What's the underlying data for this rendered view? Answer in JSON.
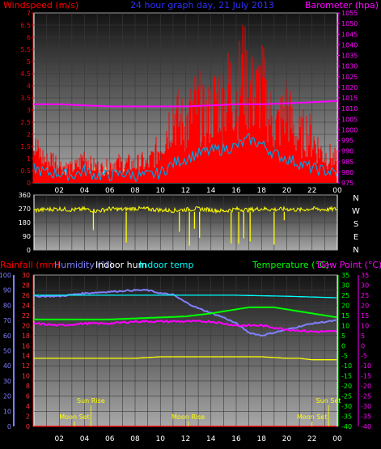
{
  "chart_data": [
    {
      "type": "line",
      "title": "24 hour graph day, 21 July 2013",
      "left_axis": {
        "label": "Windspeed (m/s)",
        "min": 0,
        "max": 7,
        "step": 0.5
      },
      "right_axis": {
        "label": "Barometer (hpa)",
        "min": 975,
        "max": 1055,
        "step": 5
      },
      "x_ticks": [
        "02",
        "04",
        "06",
        "08",
        "10",
        "12",
        "14",
        "16",
        "18",
        "20",
        "22",
        "00"
      ],
      "series": [
        {
          "key": "gust",
          "color": "#ff0000",
          "hours": [
            0,
            0.5,
            1,
            1.5,
            2,
            2.5,
            3,
            3.5,
            4,
            4.5,
            5,
            5.5,
            6,
            6.5,
            7,
            7.5,
            8,
            8.5,
            9,
            9.5,
            10,
            10.5,
            11,
            11.5,
            12,
            12.5,
            13,
            13.5,
            14,
            14.5,
            15,
            15.5,
            16,
            16.5,
            17,
            17.5,
            18,
            18.5,
            19,
            19.5,
            20,
            20.5,
            21,
            21.5,
            22,
            22.5,
            23,
            23.5,
            24
          ],
          "values": [
            2.0,
            1.6,
            1.2,
            1.4,
            1.0,
            0.9,
            0.8,
            1.0,
            1.6,
            1.0,
            0.9,
            0.8,
            1.0,
            1.2,
            1.0,
            1.1,
            1.0,
            1.2,
            1.0,
            1.6,
            2.0,
            3.0,
            4.0,
            3.5,
            3.2,
            4.0,
            4.5,
            3.5,
            4.0,
            5.0,
            4.5,
            5.5,
            4.5,
            6.5,
            5.2,
            4.8,
            5.5,
            4.5,
            3.0,
            3.5,
            4.5,
            3.0,
            2.5,
            3.0,
            2.5,
            2.0,
            1.5,
            1.5,
            1.2
          ]
        },
        {
          "key": "wind",
          "color": "#00a0e0",
          "hours": [
            0,
            1,
            2,
            3,
            4,
            5,
            6,
            7,
            8,
            9,
            10,
            11,
            12,
            13,
            14,
            15,
            16,
            17,
            18,
            19,
            20,
            21,
            22,
            23,
            24
          ],
          "values": [
            0.6,
            0.4,
            0.4,
            0.3,
            0.5,
            0.3,
            0.3,
            0.4,
            0.3,
            0.3,
            0.4,
            0.8,
            1.0,
            1.2,
            1.3,
            1.4,
            1.5,
            1.8,
            1.6,
            1.2,
            1.0,
            0.8,
            0.6,
            0.5,
            0.4
          ]
        },
        {
          "key": "barometer",
          "color": "#ff00ff",
          "axis": "right",
          "hours": [
            0,
            2,
            4,
            6,
            8,
            10,
            12,
            14,
            16,
            18,
            20,
            22,
            24
          ],
          "values": [
            1012,
            1012,
            1011.5,
            1011,
            1011,
            1011,
            1011,
            1011.5,
            1012,
            1012,
            1012.5,
            1013,
            1013.5
          ]
        }
      ]
    },
    {
      "type": "scatter",
      "left_axis": {
        "min": 0,
        "max": 360,
        "ticks": [
          0,
          90,
          180,
          270,
          360
        ]
      },
      "right_labels": [
        "N",
        "W",
        "S",
        "E",
        "N"
      ],
      "series": [
        {
          "key": "direction",
          "color": "#ffff00",
          "hours": [
            0,
            1,
            2,
            3,
            4,
            5,
            6,
            7,
            8,
            9,
            10,
            11,
            12,
            13,
            14,
            15,
            16,
            17,
            18,
            19,
            20,
            21,
            22,
            23,
            24
          ],
          "values": [
            260,
            265,
            270,
            262,
            268,
            255,
            270,
            265,
            272,
            268,
            262,
            258,
            265,
            270,
            262,
            255,
            268,
            262,
            270,
            265,
            268,
            262,
            270,
            265,
            268
          ]
        }
      ]
    },
    {
      "type": "line",
      "left_axis_1": {
        "label": "Rainfall (mm)",
        "min": 0,
        "max": 100,
        "step": 10
      },
      "left_axis_2": {
        "label": "Humidity (%)",
        "min": 0,
        "max": 30,
        "step": 2
      },
      "left_axis_3": {
        "label": "Indoor hum",
        "color": "#ffff00"
      },
      "left_axis_4": {
        "label": "Indoor temp",
        "color": "#00ffff"
      },
      "right_axis_1": {
        "label": "Temperature (°C)",
        "min": -40,
        "max": 35,
        "step": 5
      },
      "right_axis_2": {
        "label": "Dew Point (°C)",
        "min": -40,
        "max": 35,
        "step": 5
      },
      "x_ticks": [
        "02",
        "04",
        "06",
        "08",
        "10",
        "12",
        "14",
        "16",
        "18",
        "20",
        "22",
        "00"
      ],
      "annotations": [
        {
          "text": "Sun Rise",
          "hour": 4.5
        },
        {
          "text": "Moon Set",
          "hour": 3.2
        },
        {
          "text": "Moon Rise",
          "hour": 12.2
        },
        {
          "text": "Moon Set",
          "hour": 22.0
        },
        {
          "text": "Sun Set",
          "hour": 23.3
        }
      ],
      "series": [
        {
          "key": "humidity",
          "color": "#8080ff",
          "axis": "left100",
          "hours": [
            0,
            2,
            4,
            6,
            8,
            9,
            10,
            11,
            12,
            13,
            14,
            15,
            16,
            17,
            18,
            19,
            20,
            21,
            22,
            23,
            24
          ],
          "values": [
            86,
            86,
            88,
            89,
            90,
            90,
            88,
            87,
            82,
            78,
            75,
            72,
            68,
            62,
            60,
            62,
            64,
            66,
            68,
            69,
            70
          ]
        },
        {
          "key": "dewpoint",
          "color": "#ff00ff",
          "axis": "right",
          "hours": [
            0,
            2,
            4,
            6,
            8,
            10,
            12,
            14,
            16,
            18,
            20,
            22,
            24
          ],
          "values": [
            11,
            10,
            11,
            11,
            12,
            12,
            12,
            12,
            10,
            10,
            8,
            7,
            7
          ]
        },
        {
          "key": "temperature",
          "color": "#00ff00",
          "axis": "right",
          "hours": [
            0,
            2,
            4,
            6,
            8,
            10,
            12,
            14,
            15,
            16,
            17,
            18,
            19,
            20,
            21,
            22,
            23,
            24
          ],
          "values": [
            13,
            13,
            13,
            13,
            13.5,
            14,
            14.5,
            16,
            17,
            18,
            19,
            19,
            19,
            18,
            17,
            16,
            15,
            14
          ]
        },
        {
          "key": "indoortemp",
          "color": "#00ffff",
          "axis": "left30",
          "hours": [
            0,
            4,
            8,
            12,
            16,
            20,
            24
          ],
          "values": [
            26,
            26,
            26,
            26,
            26,
            25.8,
            25.5
          ]
        },
        {
          "key": "indoorhum",
          "color": "#ffff00",
          "axis": "left100",
          "hours": [
            0,
            2,
            4,
            6,
            8,
            10,
            11,
            12,
            14,
            16,
            18,
            20,
            21,
            22,
            24
          ],
          "values": [
            45,
            45,
            45,
            45,
            45,
            46,
            46,
            46,
            46,
            46,
            46,
            45,
            45,
            44,
            44
          ]
        },
        {
          "key": "rain",
          "color": "#ff0000",
          "axis": "left100",
          "hours": [
            0,
            24
          ],
          "values": [
            0,
            0
          ]
        }
      ]
    }
  ]
}
